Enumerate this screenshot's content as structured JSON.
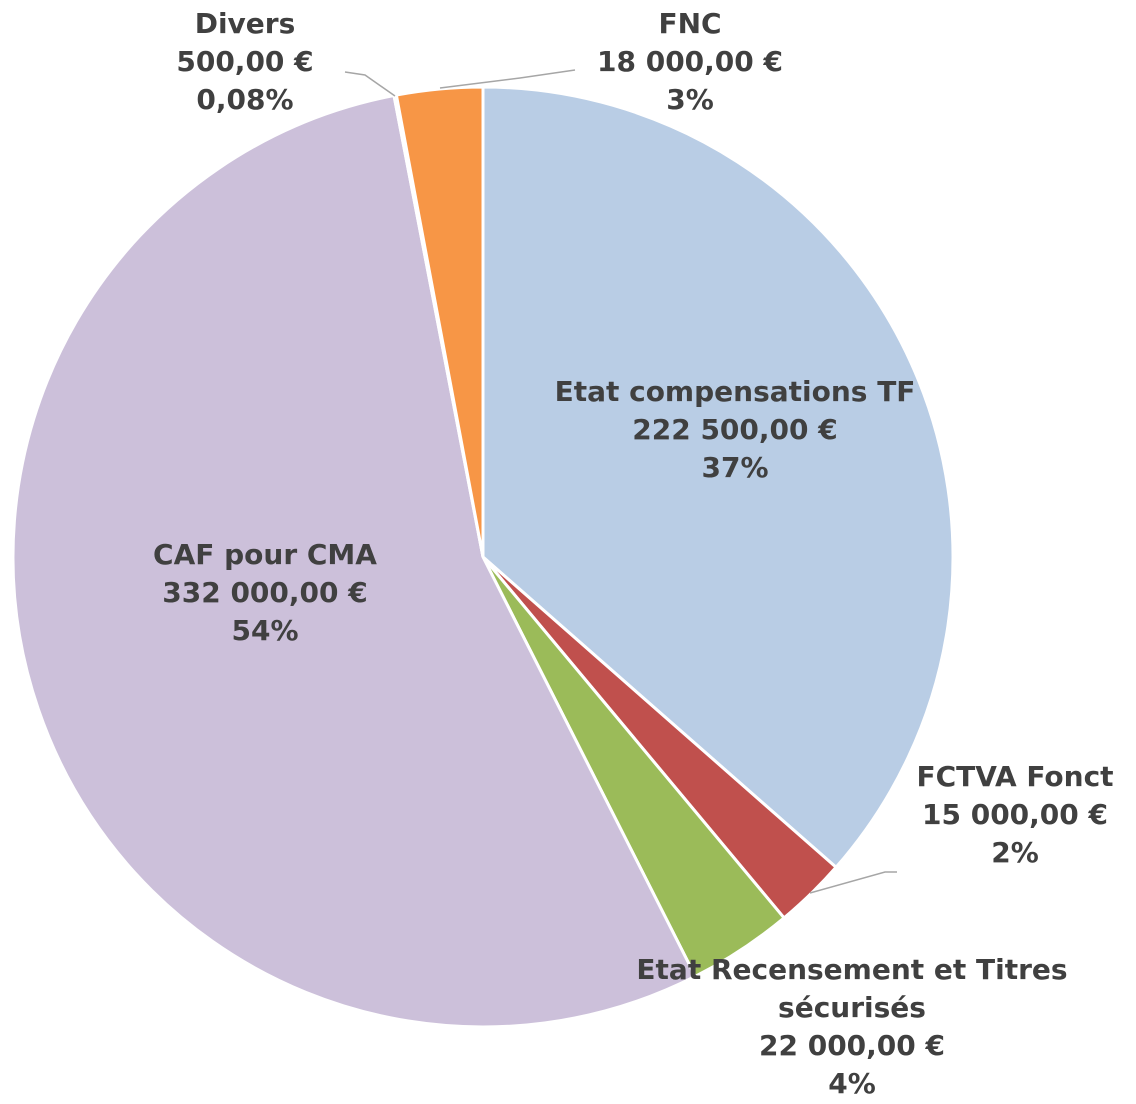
{
  "chart_data": {
    "type": "pie",
    "categories": [
      "Etat compensations TF",
      "FCTVA Fonct",
      "Etat Recensement et Titres sécurisés",
      "CAF pour CMA",
      "Divers",
      "FNC"
    ],
    "values": [
      222500,
      15000,
      22000,
      332000,
      500,
      18000
    ],
    "value_labels": [
      "222 500,00 €",
      "15 000,00 €",
      "22 000,00 €",
      "332 000,00 €",
      "500,00 €",
      "18 000,00 €"
    ],
    "percentages": [
      37,
      2,
      4,
      54,
      0.08,
      3
    ],
    "percentage_labels": [
      "37%",
      "2%",
      "4%",
      "54%",
      "0,08%",
      "3%"
    ],
    "colors": [
      "#b9cde5",
      "#c0504d",
      "#9bbb59",
      "#ccc0da",
      "#93cddd",
      "#f79646"
    ]
  }
}
